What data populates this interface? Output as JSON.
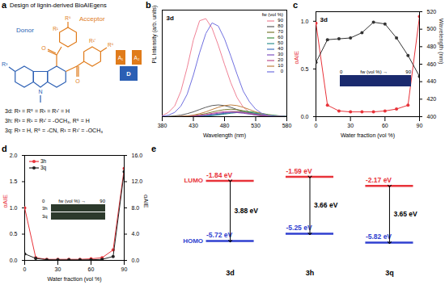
{
  "chart_data": [
    {
      "type": "diagram",
      "panel": "a",
      "title": "Design of lignin-derived BioAIEgens",
      "donor": "Donor",
      "acceptor": "Acceptor",
      "substituents": [
        "R³",
        "R⁵",
        "R¹",
        "R¹'"
      ],
      "atoms": [
        "N",
        "O"
      ],
      "blocks": [
        "A₁",
        "D",
        "A₂"
      ],
      "compounds": [
        "3d: R³ = R⁵ = R¹ = R¹' = H",
        "3h: R³ = R¹ = R¹' = -OCH₃, R⁵ = H",
        "3q: R³ = H, R⁵ = -CN, R¹ = R¹' = -OCH₃"
      ]
    },
    {
      "type": "line",
      "panel": "b",
      "title": "3d",
      "x_label": "Wavelength (nm)",
      "y_label": "PL Intensity (arb. units)",
      "x": [
        380,
        390,
        400,
        410,
        420,
        430,
        440,
        450,
        460,
        470,
        480,
        490,
        500,
        510,
        520,
        530,
        540,
        550,
        560,
        570,
        580
      ],
      "xlim": [
        380,
        580
      ],
      "xticks": [
        380,
        430,
        480,
        530,
        580
      ],
      "ylim": [
        0,
        1
      ],
      "tick_labels": "x",
      "legend": "top-right",
      "legend_title": "fw (vol %)",
      "series": [
        {
          "name": "90",
          "color": "#f08296",
          "values": [
            0.01,
            0.04,
            0.1,
            0.24,
            0.46,
            0.72,
            0.9,
            0.92,
            0.83,
            0.67,
            0.49,
            0.32,
            0.18,
            0.09,
            0.04,
            0.02,
            0.01,
            0.004,
            0.002,
            0.001,
            0
          ]
        },
        {
          "name": "80",
          "color": "#5c5c5c",
          "values": [
            0.001,
            0.003,
            0.007,
            0.015,
            0.028,
            0.045,
            0.067,
            0.088,
            0.104,
            0.11,
            0.104,
            0.088,
            0.067,
            0.045,
            0.028,
            0.015,
            0.007,
            0.003,
            0.001,
            0,
            0
          ]
        },
        {
          "name": "70",
          "color": "#7a7a30",
          "values": [
            0,
            0,
            0.001,
            0.002,
            0.005,
            0.009,
            0.018,
            0.029,
            0.043,
            0.056,
            0.066,
            0.07,
            0.066,
            0.056,
            0.043,
            0.029,
            0.018,
            0.009,
            0.005,
            0.002,
            0.001
          ]
        },
        {
          "name": "60",
          "color": "#3f8f3f",
          "values": [
            0,
            0,
            0,
            0,
            0,
            0.001,
            0.003,
            0.007,
            0.013,
            0.02,
            0.031,
            0.04,
            0.047,
            0.05,
            0.047,
            0.04,
            0.031,
            0.02,
            0.013,
            0.007,
            0.003
          ]
        },
        {
          "name": "50",
          "color": "#2f8f8f",
          "values": [
            0,
            0,
            0,
            0,
            0,
            0.001,
            0.003,
            0.005,
            0.01,
            0.016,
            0.024,
            0.032,
            0.038,
            0.04,
            0.038,
            0.032,
            0.024,
            0.016,
            0.01,
            0.005,
            0.003
          ]
        },
        {
          "name": "40",
          "color": "#3f6fbf",
          "values": [
            0,
            0,
            0,
            0,
            0.001,
            0.003,
            0.005,
            0.01,
            0.016,
            0.024,
            0.032,
            0.038,
            0.04,
            0.038,
            0.032,
            0.024,
            0.016,
            0.01,
            0.005,
            0.003,
            0.001
          ]
        },
        {
          "name": "30",
          "color": "#7f4fbf",
          "values": [
            0,
            0,
            0,
            0.001,
            0.003,
            0.005,
            0.01,
            0.016,
            0.024,
            0.032,
            0.038,
            0.04,
            0.038,
            0.032,
            0.024,
            0.016,
            0.01,
            0.005,
            0.003,
            0.001,
            0
          ]
        },
        {
          "name": "20",
          "color": "#bf4f8f",
          "values": [
            0,
            0,
            0,
            0.001,
            0.003,
            0.007,
            0.013,
            0.02,
            0.031,
            0.04,
            0.047,
            0.05,
            0.047,
            0.04,
            0.031,
            0.02,
            0.013,
            0.007,
            0.003,
            0.001,
            0
          ]
        },
        {
          "name": "10",
          "color": "#bf7f3f",
          "values": [
            0,
            0,
            0.001,
            0.003,
            0.007,
            0.015,
            0.028,
            0.045,
            0.067,
            0.088,
            0.104,
            0.11,
            0.104,
            0.088,
            0.067,
            0.045,
            0.028,
            0.015,
            0.007,
            0.003,
            0.001
          ]
        },
        {
          "name": "0",
          "color": "#7070e0",
          "values": [
            0.004,
            0.014,
            0.04,
            0.1,
            0.21,
            0.39,
            0.6,
            0.78,
            0.88,
            0.85,
            0.73,
            0.57,
            0.4,
            0.24,
            0.14,
            0.07,
            0.03,
            0.01,
            0.005,
            0.002,
            0.001
          ]
        }
      ]
    },
    {
      "type": "line",
      "panel": "c",
      "title": "3d",
      "x_label": "Water fraction (vol %)",
      "x": [
        0,
        10,
        20,
        30,
        40,
        50,
        60,
        70,
        80,
        90
      ],
      "xlim": [
        0,
        90
      ],
      "xticks": [
        0,
        30,
        60,
        90
      ],
      "ylim": [
        0,
        1.1
      ],
      "yticks": [
        {
          "value": 0,
          "label": "0.0"
        },
        {
          "value": 0.5,
          "label": "0.5"
        },
        {
          "value": 1,
          "label": "1.0"
        }
      ],
      "y2lim": [
        400,
        520
      ],
      "y2ticks": [
        400,
        420,
        440,
        460,
        480,
        500,
        520
      ],
      "inset": {
        "label": "fw (vol %)",
        "from": 0,
        "to": 90
      },
      "series": [
        {
          "name": "αAIE",
          "color": "#e8333a",
          "marker": "circle",
          "values": [
            0.98,
            0.12,
            0.06,
            0.05,
            0.05,
            0.05,
            0.06,
            0.08,
            0.12,
            1.05
          ]
        },
        {
          "name": "Wavelength (nm)",
          "color": "#333333",
          "marker": "circle",
          "axis": "y2",
          "values": [
            462,
            488,
            489,
            490,
            496,
            508,
            506,
            490,
            470,
            446
          ]
        }
      ]
    },
    {
      "type": "line",
      "panel": "d",
      "x_label": "Water fraction (vol %)",
      "y_label": "αAIE",
      "y2_label": "αAIE",
      "x": [
        0,
        10,
        20,
        30,
        40,
        50,
        60,
        70,
        80,
        90
      ],
      "xlim": [
        0,
        90
      ],
      "xticks": [
        0,
        30,
        60,
        90
      ],
      "ylim": [
        0,
        2
      ],
      "yticks": [
        {
          "value": 0,
          "label": "0.0"
        },
        {
          "value": 0.5,
          "label": "0.5"
        },
        {
          "value": 1,
          "label": "1.0"
        },
        {
          "value": 1.5,
          "label": "1.5"
        },
        {
          "value": 2,
          "label": "2.0"
        }
      ],
      "y2lim": [
        0,
        16
      ],
      "y2ticks": [
        {
          "value": 0,
          "label": "0.0"
        },
        {
          "value": 4,
          "label": "4.0"
        },
        {
          "value": 8,
          "label": "8.0"
        },
        {
          "value": 12,
          "label": "12.0"
        },
        {
          "value": 16,
          "label": "16.0"
        }
      ],
      "legend": "top-left",
      "inset": {
        "label": "fw (vol %)",
        "from": 0,
        "to": 90
      },
      "series": [
        {
          "name": "3h",
          "color": "#e8333a",
          "marker": "circle",
          "values": [
            1.0,
            0.05,
            0.02,
            0.02,
            0.02,
            0.02,
            0.03,
            0.05,
            0.2,
            1.75
          ]
        },
        {
          "name": "3q",
          "color": "#222222",
          "marker": "circle",
          "axis": "y2",
          "values": [
            1.0,
            0.3,
            0.1,
            0.08,
            0.08,
            0.08,
            0.1,
            0.15,
            0.6,
            13.5
          ]
        }
      ]
    },
    {
      "type": "energy_levels",
      "panel": "e",
      "categories": [
        "3d",
        "3h",
        "3q"
      ],
      "ylim": [
        -8,
        0
      ],
      "tick_labels": false,
      "data_labels": true,
      "series": [
        {
          "name": "LUMO",
          "color": "#e8333a",
          "values": [
            -1.84,
            -1.59,
            -2.17
          ],
          "value_labels": [
            "-1.84 eV",
            "-1.59 eV",
            "-2.17 eV"
          ]
        },
        {
          "name": "HOMO",
          "color": "#2f3fd0",
          "values": [
            -5.72,
            -5.25,
            -5.82
          ],
          "value_labels": [
            "-5.72 eV",
            "-5.25 eV",
            "-5.82 eV"
          ]
        }
      ],
      "gap": {
        "values": [
          3.88,
          3.66,
          3.65
        ],
        "value_labels": [
          "3.88 eV",
          "3.66 eV",
          "3.65 eV"
        ]
      }
    }
  ]
}
